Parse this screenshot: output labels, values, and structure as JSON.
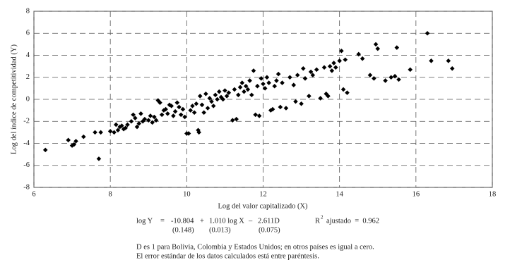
{
  "chart_data": {
    "type": "scatter",
    "x_label": "Log del valor capitalizado (X)",
    "y_label": "Log del índice de competitividad (Y)",
    "xlim": [
      6,
      18
    ],
    "xticks": [
      6,
      8,
      10,
      12,
      14,
      16,
      18
    ],
    "ylim": [
      -8,
      8
    ],
    "yticks": [
      -8,
      -6,
      -4,
      -2,
      0,
      2,
      4,
      6,
      8
    ],
    "grid": true,
    "color": "#000000",
    "x": [
      6.3,
      6.9,
      7.0,
      7.05,
      7.1,
      7.3,
      7.6,
      7.7,
      7.75,
      8.0,
      8.1,
      8.15,
      8.2,
      8.25,
      8.3,
      8.35,
      8.4,
      8.45,
      8.55,
      8.6,
      8.65,
      8.7,
      8.75,
      8.8,
      8.85,
      8.9,
      9.0,
      9.05,
      9.1,
      9.15,
      9.2,
      9.25,
      9.3,
      9.35,
      9.4,
      9.45,
      9.5,
      9.55,
      9.6,
      9.65,
      9.7,
      9.75,
      9.8,
      9.85,
      9.9,
      9.95,
      10.0,
      10.05,
      10.1,
      10.15,
      10.2,
      10.25,
      10.3,
      10.32,
      10.35,
      10.4,
      10.45,
      10.5,
      10.55,
      10.6,
      10.65,
      10.7,
      10.75,
      10.8,
      10.85,
      10.9,
      10.95,
      11.0,
      11.05,
      11.1,
      11.2,
      11.25,
      11.3,
      11.35,
      11.4,
      11.45,
      11.5,
      11.55,
      11.6,
      11.65,
      11.7,
      11.75,
      11.8,
      11.85,
      11.9,
      11.95,
      12.0,
      12.05,
      12.1,
      12.15,
      12.2,
      12.25,
      12.3,
      12.35,
      12.4,
      12.45,
      12.5,
      12.6,
      12.7,
      12.8,
      12.85,
      12.9,
      13.0,
      13.05,
      13.1,
      13.2,
      13.25,
      13.3,
      13.4,
      13.5,
      13.6,
      13.65,
      13.7,
      13.75,
      13.8,
      13.85,
      13.9,
      14.0,
      14.05,
      14.1,
      14.15,
      14.2,
      14.5,
      14.6,
      14.8,
      14.9,
      14.95,
      15.0,
      15.2,
      15.35,
      15.45,
      15.5,
      15.55,
      15.85,
      16.3,
      16.4,
      16.85,
      16.95
    ],
    "values": [
      -4.6,
      -3.7,
      -4.2,
      -4.1,
      -3.8,
      -3.4,
      -3.0,
      -5.4,
      -3.0,
      -2.9,
      -3.0,
      -2.3,
      -2.8,
      -2.5,
      -2.4,
      -2.7,
      -2.6,
      -2.3,
      -2.0,
      -1.4,
      -1.7,
      -2.5,
      -2.2,
      -1.3,
      -2.0,
      -1.8,
      -1.9,
      -1.5,
      -2.1,
      -1.6,
      -1.9,
      -0.1,
      -0.3,
      -1.4,
      -1.0,
      -0.9,
      -1.3,
      -0.5,
      -0.6,
      -1.5,
      -1.1,
      -0.3,
      -0.7,
      -1.4,
      -0.9,
      -1.6,
      -3.1,
      -3.1,
      -1.0,
      -0.6,
      -1.2,
      -0.4,
      -2.8,
      -3.0,
      0.3,
      -0.5,
      -1.2,
      0.5,
      -0.8,
      0.1,
      -0.2,
      -0.6,
      0.4,
      0.0,
      0.7,
      0.2,
      0.0,
      0.8,
      0.3,
      0.6,
      -1.9,
      0.9,
      -1.8,
      0.4,
      1.1,
      1.5,
      0.7,
      1.2,
      0.9,
      1.7,
      0.4,
      2.6,
      -1.4,
      1.2,
      -1.5,
      1.9,
      1.4,
      1.0,
      2.0,
      1.5,
      -1.0,
      -0.9,
      1.2,
      1.7,
      2.3,
      -0.7,
      1.5,
      -0.8,
      2.0,
      1.3,
      -0.2,
      2.2,
      -0.4,
      2.8,
      1.9,
      0.3,
      2.5,
      2.2,
      2.7,
      0.1,
      2.9,
      0.5,
      0.3,
      3.0,
      2.6,
      3.3,
      2.9,
      3.5,
      4.4,
      0.9,
      3.6,
      0.6,
      4.1,
      3.7,
      2.2,
      1.9,
      5.0,
      4.6,
      1.7,
      2.0,
      2.1,
      4.7,
      1.8,
      2.7,
      6.0,
      3.5,
      3.5,
      2.8
    ],
    "equation": {
      "lhs": "log Y",
      "eq": "=",
      "const": "-10.804",
      "plus": "+",
      "slope": "1.010 log X",
      "minus": "–",
      "dummy": "2.611D",
      "se_const": "(0.148)",
      "se_slope": "(0.013)",
      "se_dummy": "(0.075)",
      "r2_base": "R",
      "r2_sup": "2",
      "r2_text": "ajustado  =  0.962"
    },
    "notes": [
      "D es 1 para Bolivia, Colombia y Estados Unidos; en otros países es igual a cero.",
      "El error estándar de los datos calculados está entre paréntesis."
    ]
  }
}
